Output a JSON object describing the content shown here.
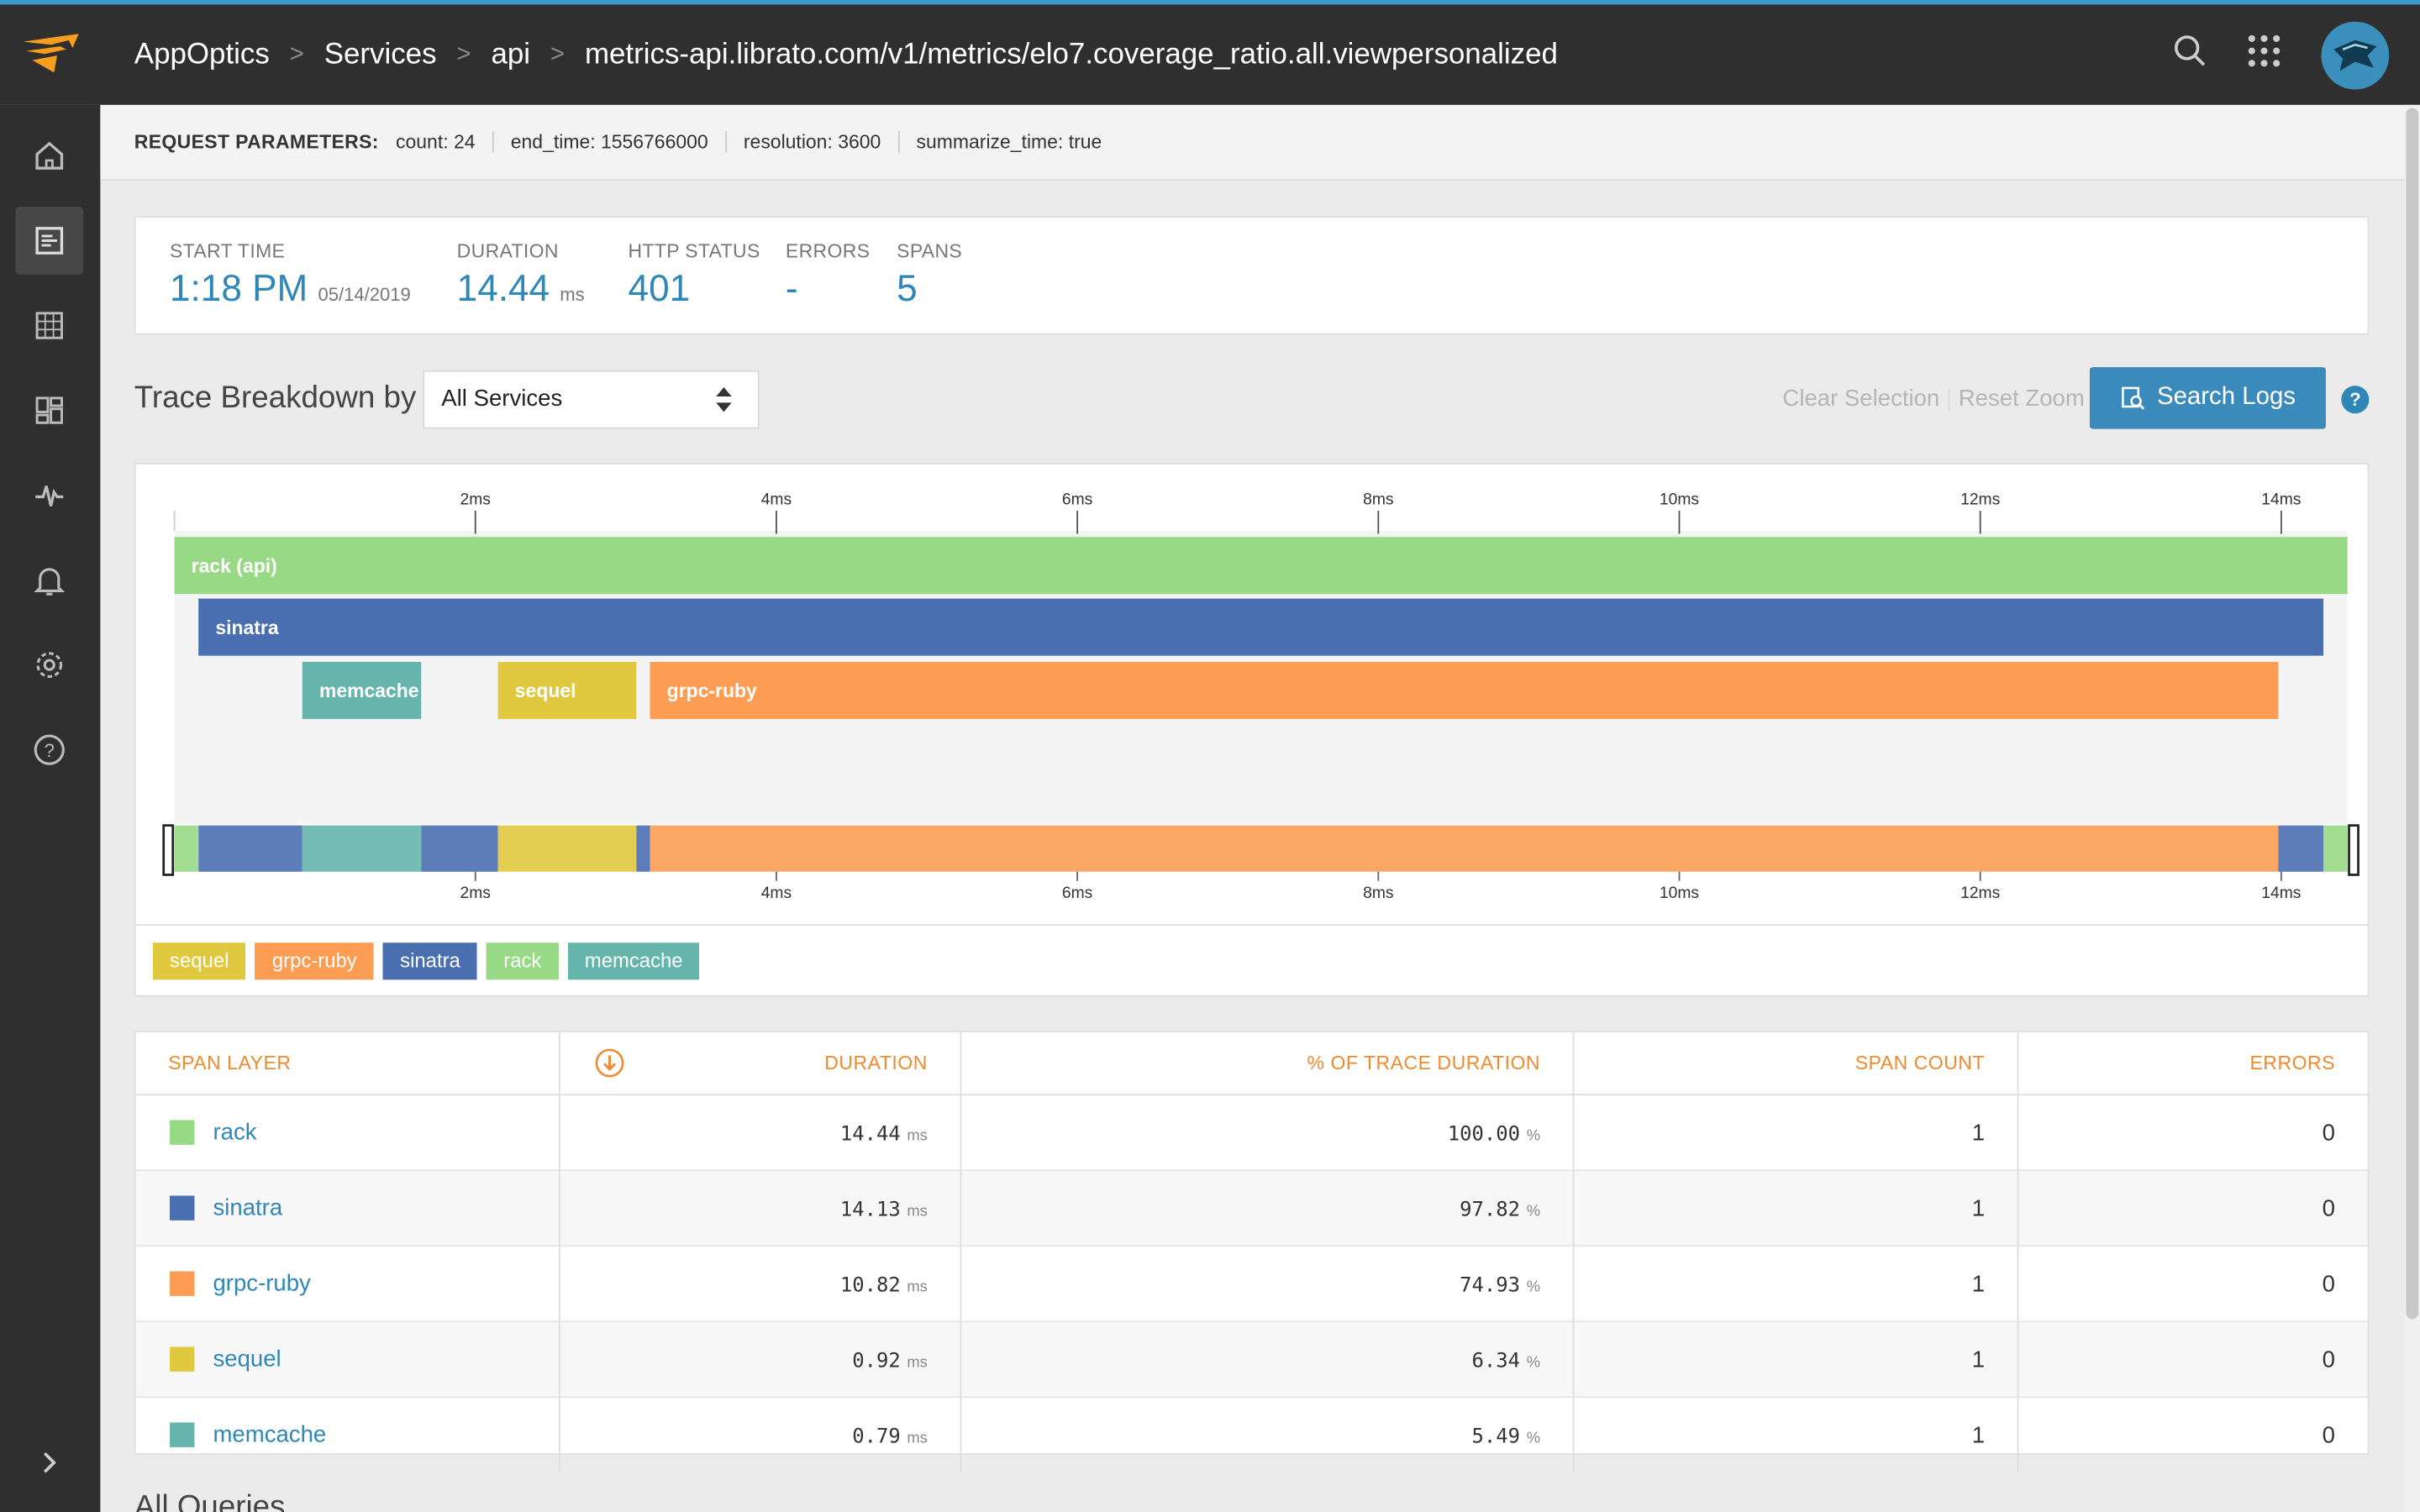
{
  "breadcrumb": {
    "app": "AppOptics",
    "section": "Services",
    "service": "api",
    "endpoint": "metrics-api.librato.com/v1/metrics/elo7.coverage_ratio.all.viewpersonalized"
  },
  "params": {
    "label": "REQUEST PARAMETERS:",
    "count": "count: 24",
    "end_time": "end_time: 1556766000",
    "resolution": "resolution: 3600",
    "summarize_time": "summarize_time: true"
  },
  "summary": {
    "start_label": "START TIME",
    "start_time": "1:18 PM",
    "start_date": "05/14/2019",
    "duration_label": "DURATION",
    "duration": "14.44",
    "duration_unit": "ms",
    "status_label": "HTTP STATUS",
    "status": "401",
    "errors_label": "ERRORS",
    "errors": "-",
    "spans_label": "SPANS",
    "spans": "5"
  },
  "breakdown": {
    "title": "Trace Breakdown by",
    "selected": "All Services",
    "clear": "Clear Selection",
    "reset": "Reset Zoom",
    "search": "Search Logs",
    "help": "?"
  },
  "colors": {
    "rack": "#98d986",
    "sinatra": "#4a6fb0",
    "memcache": "#66b5ac",
    "sequel": "#e1c93f",
    "grpc-ruby": "#fd9d53"
  },
  "chart_data": {
    "type": "gantt",
    "x_unit": "ms",
    "xlim": [
      0,
      14.44
    ],
    "ticks": [
      "2ms",
      "4ms",
      "6ms",
      "8ms",
      "10ms",
      "12ms",
      "14ms"
    ],
    "tick_values": [
      2,
      4,
      6,
      8,
      10,
      12,
      14
    ],
    "spans": [
      {
        "name": "rack (api)",
        "layer": "rack",
        "start": 0.0,
        "end": 14.44
      },
      {
        "name": "sinatra",
        "layer": "sinatra",
        "start": 0.16,
        "end": 14.28
      },
      {
        "name": "memcache",
        "layer": "memcache",
        "start": 0.85,
        "end": 1.64
      },
      {
        "name": "sequel",
        "layer": "sequel",
        "start": 2.15,
        "end": 3.07
      },
      {
        "name": "grpc-ruby",
        "layer": "grpc-ruby",
        "start": 3.16,
        "end": 13.98
      }
    ],
    "overview": [
      {
        "layer": "rack",
        "start": 0.0,
        "end": 0.16
      },
      {
        "layer": "sinatra",
        "start": 0.16,
        "end": 0.85
      },
      {
        "layer": "memcache",
        "start": 0.85,
        "end": 1.64
      },
      {
        "layer": "sinatra",
        "start": 1.64,
        "end": 2.15
      },
      {
        "layer": "sequel",
        "start": 2.15,
        "end": 3.07
      },
      {
        "layer": "sinatra",
        "start": 3.07,
        "end": 3.16
      },
      {
        "layer": "grpc-ruby",
        "start": 3.16,
        "end": 13.98
      },
      {
        "layer": "sinatra",
        "start": 13.98,
        "end": 14.28
      },
      {
        "layer": "rack",
        "start": 14.28,
        "end": 14.44
      }
    ]
  },
  "legend": [
    "sequel",
    "grpc-ruby",
    "sinatra",
    "rack",
    "memcache"
  ],
  "table": {
    "headers": {
      "layer": "SPAN LAYER",
      "duration": "DURATION",
      "pct": "% OF TRACE DURATION",
      "count": "SPAN COUNT",
      "errors": "ERRORS"
    },
    "rows": [
      {
        "layer": "rack",
        "duration": "14.44",
        "unit": "ms",
        "pct": "100.00",
        "pct_unit": "%",
        "count": "1",
        "errors": "0"
      },
      {
        "layer": "sinatra",
        "duration": "14.13",
        "unit": "ms",
        "pct": "97.82",
        "pct_unit": "%",
        "count": "1",
        "errors": "0"
      },
      {
        "layer": "grpc-ruby",
        "duration": "10.82",
        "unit": "ms",
        "pct": "74.93",
        "pct_unit": "%",
        "count": "1",
        "errors": "0"
      },
      {
        "layer": "sequel",
        "duration": "0.92",
        "unit": "ms",
        "pct": "6.34",
        "pct_unit": "%",
        "count": "1",
        "errors": "0"
      },
      {
        "layer": "memcache",
        "duration": "0.79",
        "unit": "ms",
        "pct": "5.49",
        "pct_unit": "%",
        "count": "1",
        "errors": "0"
      }
    ]
  },
  "footer": {
    "all_queries": "All Queries"
  }
}
